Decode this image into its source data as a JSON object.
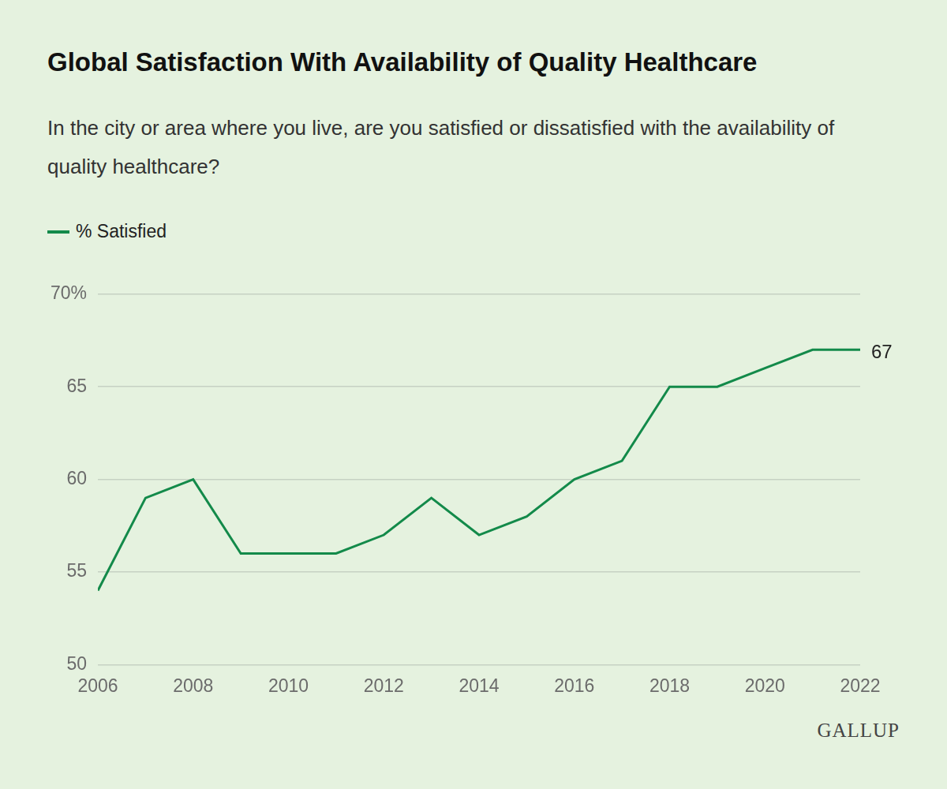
{
  "chart_data": {
    "type": "line",
    "title": "Global Satisfaction With Availability of Quality Healthcare",
    "subtitle": "In the city or area where you live, are you satisfied or dissatisfied with the availability of quality healthcare?",
    "x": [
      2006,
      2007,
      2008,
      2009,
      2010,
      2011,
      2012,
      2013,
      2014,
      2015,
      2016,
      2017,
      2018,
      2019,
      2020,
      2021,
      2022
    ],
    "series": [
      {
        "name": "% Satisfied",
        "color": "#138a4a",
        "marker": "none",
        "line_style": "solid",
        "values": [
          54,
          59,
          60,
          56,
          56,
          56,
          57,
          59,
          57,
          58,
          60,
          61,
          65,
          65,
          66,
          67,
          67
        ]
      }
    ],
    "xlim": [
      2006,
      2022
    ],
    "xticks": [
      2006,
      2008,
      2010,
      2012,
      2014,
      2016,
      2018,
      2020,
      2022
    ],
    "ylim": [
      50,
      70
    ],
    "yticks": [
      50,
      55,
      60,
      65,
      {
        "value": 70,
        "label": "70%"
      }
    ],
    "grid": true,
    "legend": "top-left",
    "annotations": [
      {
        "text": "67"
      }
    ],
    "source": "GALLUP"
  }
}
